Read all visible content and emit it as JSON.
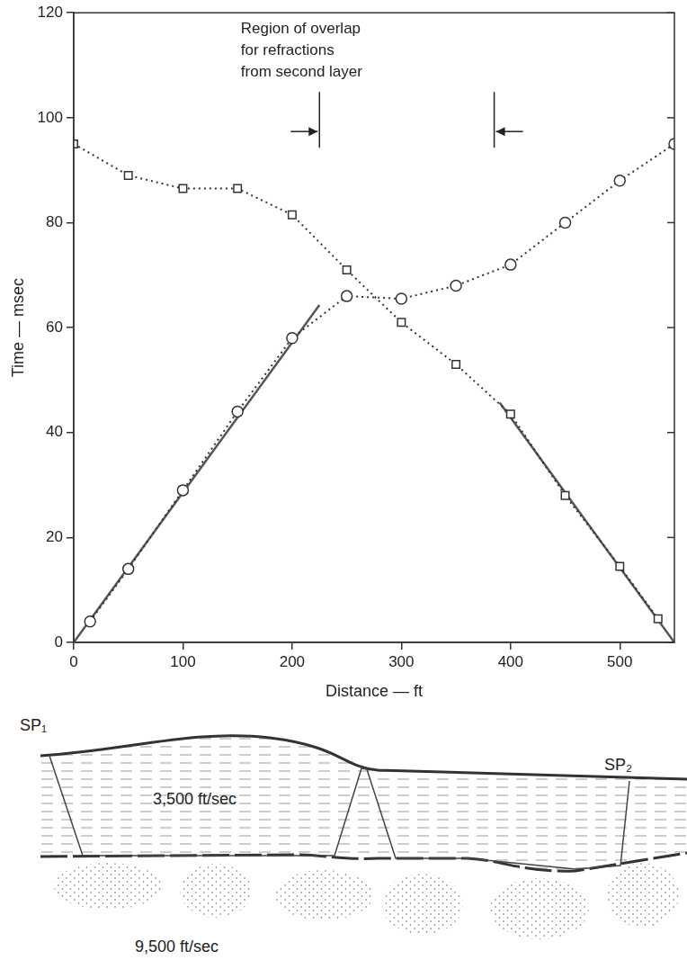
{
  "chart_data": {
    "type": "scatter",
    "x_label": "Distance — ft",
    "y_label": "Time — msec",
    "xlim": [
      0,
      550
    ],
    "xticks": [
      0,
      100,
      200,
      300,
      400,
      500
    ],
    "ylim": [
      0,
      120
    ],
    "yticks": [
      0,
      20,
      40,
      60,
      80,
      100,
      120
    ],
    "grid": false,
    "annotation": {
      "text": [
        "Region of overlap",
        "for refractions",
        "from second layer"
      ],
      "x": [
        225,
        385
      ]
    },
    "series": [
      {
        "color": "#333333",
        "marker": "circle",
        "line_style": "dotted",
        "x": [
          15,
          50,
          100,
          150,
          200,
          250,
          300,
          350,
          400,
          450,
          500,
          550
        ],
        "values": [
          4,
          14,
          29,
          44,
          58,
          66,
          65.5,
          68,
          72,
          80,
          88,
          95
        ]
      },
      {
        "color": "#333333",
        "marker": "square",
        "line_style": "dotted",
        "x": [
          0,
          50,
          100,
          150,
          200,
          250,
          300,
          350,
          400,
          450,
          500,
          535
        ],
        "values": [
          95,
          89,
          86.5,
          86.5,
          81.5,
          71,
          61,
          53,
          43.5,
          28,
          14.5,
          4.5
        ]
      },
      {
        "color": "#555555",
        "marker": "none",
        "line_style": "solid",
        "x": [
          0,
          225
        ],
        "values": [
          0,
          64.3
        ]
      },
      {
        "color": "#555555",
        "marker": "none",
        "line_style": "solid",
        "x": [
          390,
          550
        ],
        "values": [
          45.7,
          0
        ]
      }
    ]
  },
  "diagram": {
    "shot_points": [
      "SP₁",
      "SP₂"
    ],
    "upper_layer_velocity": "3,500 ft/sec",
    "lower_layer_velocity": "9,500 ft/sec"
  }
}
